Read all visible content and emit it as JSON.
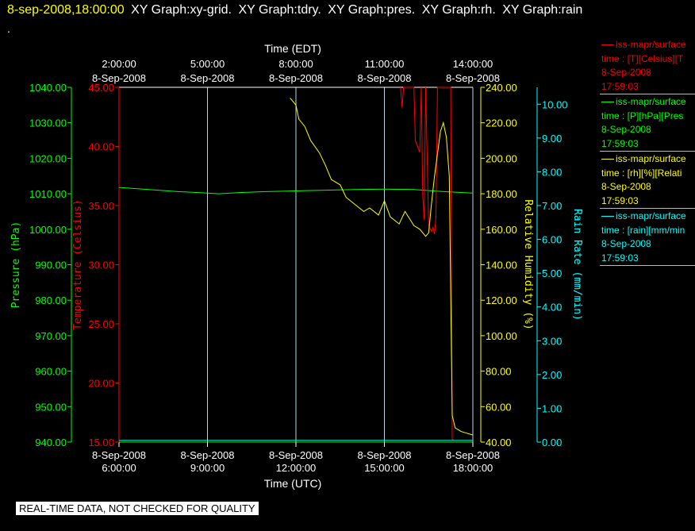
{
  "header": {
    "date": "8-sep-2008,18:00:00",
    "graphs": [
      "XY Graph:xy-grid.",
      "XY Graph:tdry.",
      "XY Graph:pres.",
      "XY Graph:rh.",
      "XY Graph:rain"
    ],
    "dot": "."
  },
  "legend": [
    {
      "name": "iss-mapr/surface",
      "line2": "time : [T][Celsius][T",
      "line3": "8-Sep-2008",
      "line4": "17:59:03",
      "color": "#ff0000"
    },
    {
      "name": "iss-mapr/surface",
      "line2": "time : [P][hPa][Pres",
      "line3": "8-Sep-2008",
      "line4": "17:59:03",
      "color": "#00ff00"
    },
    {
      "name": "iss-mapr/surface",
      "line2": "time : [rh][%][Relati",
      "line3": "8-Sep-2008",
      "line4": "17:59:03",
      "color": "#ffff00"
    },
    {
      "name": "iss-mapr/surface",
      "line2": "time : [rain][mm/min",
      "line3": "8-Sep-2008",
      "line4": "17:59:03",
      "color": "#00ffff"
    }
  ],
  "footer": "REAL-TIME DATA, NOT CHECKED FOR QUALITY",
  "chart_data": {
    "type": "line",
    "top_axis": {
      "title": "Time (EDT)",
      "ticks": [
        {
          "t": 6,
          "l1": "2:00:00",
          "l2": "8-Sep-2008"
        },
        {
          "t": 9,
          "l1": "5:00:00",
          "l2": "8-Sep-2008"
        },
        {
          "t": 12,
          "l1": "8:00:00",
          "l2": "8-Sep-2008"
        },
        {
          "t": 15,
          "l1": "11:00:00",
          "l2": "8-Sep-2008"
        },
        {
          "t": 18,
          "l1": "14:00:00",
          "l2": "8-Sep-2008"
        }
      ]
    },
    "bottom_axis": {
      "title": "Time (UTC)",
      "range": [
        6,
        18
      ],
      "ticks": [
        {
          "t": 6,
          "l1": "8-Sep-2008",
          "l2": "6:00:00"
        },
        {
          "t": 9,
          "l1": "8-Sep-2008",
          "l2": "9:00:00"
        },
        {
          "t": 12,
          "l1": "8-Sep-2008",
          "l2": "12:00:00"
        },
        {
          "t": 15,
          "l1": "8-Sep-2008",
          "l2": "15:00:00"
        },
        {
          "t": 18,
          "l1": "8-Sep-2008",
          "l2": "18:00:00"
        }
      ]
    },
    "y_axes": {
      "pressure": {
        "label": "Pressure (hPa)",
        "range": [
          940,
          1040
        ],
        "color": "#00ff00",
        "ticks": [
          "940.00",
          "950.00",
          "960.00",
          "970.00",
          "980.00",
          "990.00",
          "1000.00",
          "1010.00",
          "1020.00",
          "1030.00",
          "1040.00"
        ]
      },
      "temperature": {
        "label": "Temperature (Celsius)",
        "range": [
          15,
          45
        ],
        "color": "#ff0000",
        "ticks": [
          "15.00",
          "20.00",
          "25.00",
          "30.00",
          "35.00",
          "40.00",
          "45.00"
        ]
      },
      "rh": {
        "label": "Relative Humidity (%)",
        "range": [
          40,
          240
        ],
        "color": "#ffff00",
        "ticks": [
          "40.00",
          "60.00",
          "80.00",
          "100.00",
          "120.00",
          "140.00",
          "160.00",
          "180.00",
          "200.00",
          "220.00",
          "240.00"
        ]
      },
      "rain": {
        "label": "Rain Rate (mm/min)",
        "range": [
          0,
          10.5
        ],
        "color": "#00ffff",
        "ticks": [
          "0.00",
          "1.00",
          "2.00",
          "3.00",
          "4.00",
          "5.00",
          "6.00",
          "7.00",
          "8.00",
          "9.00",
          "10.00"
        ]
      }
    },
    "series": [
      {
        "name": "pressure",
        "axis": "pressure",
        "color": "#00ff00",
        "x": [
          6,
          7,
          8,
          9,
          9.4,
          10,
          11,
          12,
          13,
          14,
          15,
          16,
          17,
          18
        ],
        "y": [
          1011.8,
          1011.2,
          1010.6,
          1010.2,
          1010.0,
          1010.3,
          1010.6,
          1010.8,
          1011.0,
          1011.2,
          1011.3,
          1011.2,
          1010.6,
          1010.2
        ]
      },
      {
        "name": "temperature",
        "axis": "temperature",
        "color": "#ff0000",
        "x": [
          15.55,
          15.6,
          15.65,
          16.0,
          16.05,
          16.2,
          16.25,
          16.3,
          16.35,
          16.4,
          16.5,
          16.6,
          16.65,
          16.7,
          16.75,
          16.8,
          16.85,
          16.9,
          16.95,
          17.0,
          17.05,
          17.1,
          17.2,
          17.25,
          17.3,
          17.35
        ],
        "y": [
          45,
          43.3,
          45,
          45,
          40.5,
          39.5,
          45,
          36,
          33.8,
          45,
          33.3,
          32.8,
          33.2,
          32.6,
          34.0,
          45,
          45,
          45,
          45,
          45,
          45,
          45,
          45,
          45,
          15.2,
          15.2
        ]
      },
      {
        "name": "rh",
        "axis": "rh",
        "color": "#ffff00",
        "x": [
          11.8,
          12.0,
          12.1,
          12.3,
          12.5,
          12.8,
          13.0,
          13.2,
          13.5,
          13.7,
          14.0,
          14.3,
          14.5,
          14.8,
          15.0,
          15.2,
          15.5,
          15.7,
          16.0,
          16.2,
          16.4,
          16.5,
          16.6,
          16.7,
          16.9,
          17.0,
          17.1,
          17.2,
          17.3,
          17.4,
          17.6,
          17.8,
          18.0
        ],
        "y": [
          234,
          230,
          222,
          218,
          210,
          203,
          196,
          188,
          185,
          178,
          174,
          170,
          172,
          168,
          176,
          167,
          163,
          170,
          162,
          160,
          156,
          158,
          175,
          190,
          215,
          220,
          212,
          190,
          55,
          48,
          46,
          45,
          44
        ]
      },
      {
        "name": "rain",
        "axis": "rain",
        "color": "#00ffff",
        "x": [
          6,
          18
        ],
        "y": [
          0.05,
          0.05
        ]
      }
    ]
  }
}
